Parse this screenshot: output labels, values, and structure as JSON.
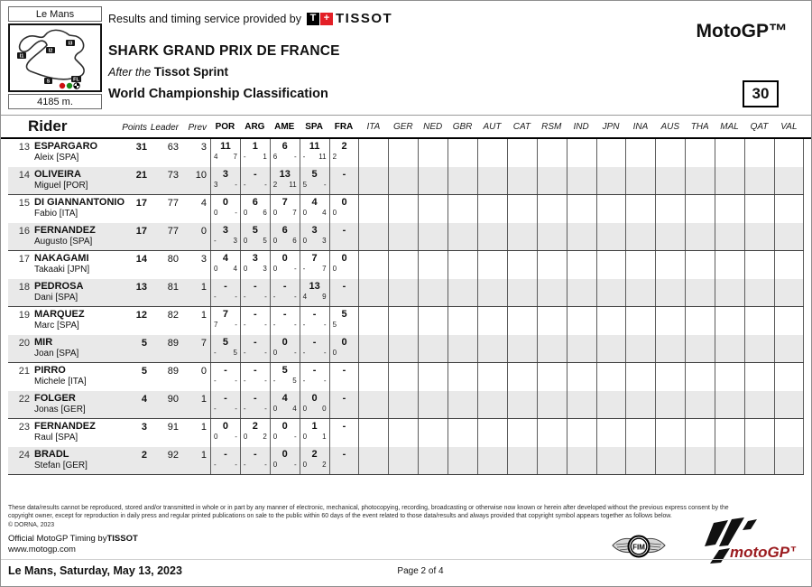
{
  "header": {
    "track_name": "Le Mans",
    "track_length": "4185 m.",
    "provider_line": "Results and timing service provided by",
    "tissot_t": "T",
    "tissot_plus": "+",
    "tissot_word": "TISSOT",
    "event_title": "SHARK GRAND PRIX DE FRANCE",
    "session_prefix": "After the",
    "session_name": "Tissot Sprint",
    "report_title": "World Championship Classification",
    "class_label": "MotoGP™",
    "riders_count": "30",
    "map_markers": [
      "I1",
      "I2",
      "I3",
      "S",
      "FL"
    ]
  },
  "table": {
    "headers": {
      "rider": "Rider",
      "points": "Points",
      "leader": "Leader",
      "prev": "Prev"
    },
    "race_columns": [
      {
        "code": "POR",
        "done": true
      },
      {
        "code": "ARG",
        "done": true
      },
      {
        "code": "AME",
        "done": true
      },
      {
        "code": "SPA",
        "done": true
      },
      {
        "code": "FRA",
        "done": true
      },
      {
        "code": "ITA",
        "done": false
      },
      {
        "code": "GER",
        "done": false
      },
      {
        "code": "NED",
        "done": false
      },
      {
        "code": "GBR",
        "done": false
      },
      {
        "code": "AUT",
        "done": false
      },
      {
        "code": "CAT",
        "done": false
      },
      {
        "code": "RSM",
        "done": false
      },
      {
        "code": "IND",
        "done": false
      },
      {
        "code": "JPN",
        "done": false
      },
      {
        "code": "INA",
        "done": false
      },
      {
        "code": "AUS",
        "done": false
      },
      {
        "code": "THA",
        "done": false
      },
      {
        "code": "MAL",
        "done": false
      },
      {
        "code": "QAT",
        "done": false
      },
      {
        "code": "VAL",
        "done": false
      }
    ],
    "rows": [
      {
        "pos": "13",
        "surname": "ESPARGARO",
        "given": "Aleix [SPA]",
        "points": "31",
        "leader": "63",
        "prev": "3",
        "results": [
          {
            "t": "11",
            "s": "4",
            "r": "7"
          },
          {
            "t": "1",
            "s": "-",
            "r": "1"
          },
          {
            "t": "6",
            "s": "6",
            "r": "-"
          },
          {
            "t": "11",
            "s": "-",
            "r": "11"
          },
          {
            "t": "2",
            "s": "2",
            "r": ""
          }
        ]
      },
      {
        "pos": "14",
        "surname": "OLIVEIRA",
        "given": "Miguel [POR]",
        "points": "21",
        "leader": "73",
        "prev": "10",
        "results": [
          {
            "t": "3",
            "s": "3",
            "r": "-"
          },
          {
            "t": "-",
            "s": "-",
            "r": "-"
          },
          {
            "t": "13",
            "s": "2",
            "r": "11"
          },
          {
            "t": "5",
            "s": "5",
            "r": "-"
          },
          {
            "t": "-",
            "s": "",
            "r": ""
          }
        ]
      },
      {
        "pos": "15",
        "surname": "DI GIANNANTONIO",
        "given": "Fabio [ITA]",
        "points": "17",
        "leader": "77",
        "prev": "4",
        "results": [
          {
            "t": "0",
            "s": "0",
            "r": "-"
          },
          {
            "t": "6",
            "s": "0",
            "r": "6"
          },
          {
            "t": "7",
            "s": "0",
            "r": "7"
          },
          {
            "t": "4",
            "s": "0",
            "r": "4"
          },
          {
            "t": "0",
            "s": "0",
            "r": ""
          }
        ]
      },
      {
        "pos": "16",
        "surname": "FERNANDEZ",
        "given": "Augusto [SPA]",
        "points": "17",
        "leader": "77",
        "prev": "0",
        "results": [
          {
            "t": "3",
            "s": "-",
            "r": "3"
          },
          {
            "t": "5",
            "s": "0",
            "r": "5"
          },
          {
            "t": "6",
            "s": "0",
            "r": "6"
          },
          {
            "t": "3",
            "s": "0",
            "r": "3"
          },
          {
            "t": "-",
            "s": "",
            "r": ""
          }
        ]
      },
      {
        "pos": "17",
        "surname": "NAKAGAMI",
        "given": "Takaaki [JPN]",
        "points": "14",
        "leader": "80",
        "prev": "3",
        "results": [
          {
            "t": "4",
            "s": "0",
            "r": "4"
          },
          {
            "t": "3",
            "s": "0",
            "r": "3"
          },
          {
            "t": "0",
            "s": "0",
            "r": "-"
          },
          {
            "t": "7",
            "s": "-",
            "r": "7"
          },
          {
            "t": "0",
            "s": "0",
            "r": ""
          }
        ]
      },
      {
        "pos": "18",
        "surname": "PEDROSA",
        "given": "Dani [SPA]",
        "points": "13",
        "leader": "81",
        "prev": "1",
        "results": [
          {
            "t": "-",
            "s": "-",
            "r": "-"
          },
          {
            "t": "-",
            "s": "-",
            "r": "-"
          },
          {
            "t": "-",
            "s": "-",
            "r": "-"
          },
          {
            "t": "13",
            "s": "4",
            "r": "9"
          },
          {
            "t": "-",
            "s": "",
            "r": ""
          }
        ]
      },
      {
        "pos": "19",
        "surname": "MARQUEZ",
        "given": "Marc [SPA]",
        "points": "12",
        "leader": "82",
        "prev": "1",
        "results": [
          {
            "t": "7",
            "s": "7",
            "r": "-"
          },
          {
            "t": "-",
            "s": "-",
            "r": "-"
          },
          {
            "t": "-",
            "s": "-",
            "r": "-"
          },
          {
            "t": "-",
            "s": "-",
            "r": "-"
          },
          {
            "t": "5",
            "s": "5",
            "r": ""
          }
        ]
      },
      {
        "pos": "20",
        "surname": "MIR",
        "given": "Joan [SPA]",
        "points": "5",
        "leader": "89",
        "prev": "7",
        "results": [
          {
            "t": "5",
            "s": "-",
            "r": "5"
          },
          {
            "t": "-",
            "s": "-",
            "r": "-"
          },
          {
            "t": "0",
            "s": "0",
            "r": "-"
          },
          {
            "t": "-",
            "s": "-",
            "r": "-"
          },
          {
            "t": "0",
            "s": "0",
            "r": ""
          }
        ]
      },
      {
        "pos": "21",
        "surname": "PIRRO",
        "given": "Michele [ITA]",
        "points": "5",
        "leader": "89",
        "prev": "0",
        "results": [
          {
            "t": "-",
            "s": "-",
            "r": "-"
          },
          {
            "t": "-",
            "s": "-",
            "r": "-"
          },
          {
            "t": "5",
            "s": "-",
            "r": "5"
          },
          {
            "t": "-",
            "s": "-",
            "r": "-"
          },
          {
            "t": "-",
            "s": "",
            "r": ""
          }
        ]
      },
      {
        "pos": "22",
        "surname": "FOLGER",
        "given": "Jonas [GER]",
        "points": "4",
        "leader": "90",
        "prev": "1",
        "results": [
          {
            "t": "-",
            "s": "-",
            "r": "-"
          },
          {
            "t": "-",
            "s": "-",
            "r": "-"
          },
          {
            "t": "4",
            "s": "0",
            "r": "4"
          },
          {
            "t": "0",
            "s": "0",
            "r": "0"
          },
          {
            "t": "-",
            "s": "",
            "r": ""
          }
        ]
      },
      {
        "pos": "23",
        "surname": "FERNANDEZ",
        "given": "Raul [SPA]",
        "points": "3",
        "leader": "91",
        "prev": "1",
        "results": [
          {
            "t": "0",
            "s": "0",
            "r": "-"
          },
          {
            "t": "2",
            "s": "0",
            "r": "2"
          },
          {
            "t": "0",
            "s": "0",
            "r": "-"
          },
          {
            "t": "1",
            "s": "0",
            "r": "1"
          },
          {
            "t": "-",
            "s": "",
            "r": ""
          }
        ]
      },
      {
        "pos": "24",
        "surname": "BRADL",
        "given": "Stefan [GER]",
        "points": "2",
        "leader": "92",
        "prev": "1",
        "results": [
          {
            "t": "-",
            "s": "-",
            "r": "-"
          },
          {
            "t": "-",
            "s": "-",
            "r": "-"
          },
          {
            "t": "0",
            "s": "0",
            "r": "-"
          },
          {
            "t": "2",
            "s": "0",
            "r": "2"
          },
          {
            "t": "-",
            "s": "",
            "r": ""
          }
        ]
      }
    ]
  },
  "footer": {
    "disclaimer1": "These data/results cannot be reproduced, stored and/or transmitted in whole or in part by any manner of electronic, mechanical, photocopying, recording, broadcasting or otherwise now known or herein after developed without the previous express consent by the",
    "disclaimer2": "copyright owner, except for reproduction in daily press and regular printed publications on sale to the public within 60 days of the event related to those data/results and always provided that copyright symbol appears together as follows below.",
    "copyright": "© DORNA, 2023",
    "timing_normal": "Official MotoGP Timing by",
    "timing_bold": "TISSOT",
    "website": "www.motogp.com",
    "fim_label": "FIM",
    "motogp_wordmark": "motoGP™",
    "date_line": "Le Mans, Saturday, May 13, 2023",
    "page_indicator": "Page 2 of 4"
  }
}
